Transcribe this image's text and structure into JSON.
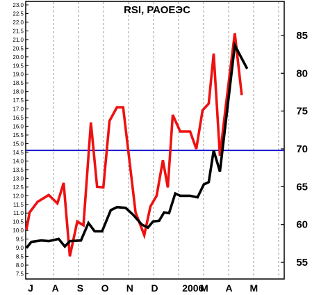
{
  "chart_data": {
    "type": "line",
    "title": "RSI, РАОЕЭС",
    "x_tick_labels": [
      "J",
      "A",
      "S",
      "O",
      "N",
      "D",
      "2006",
      "M",
      "A",
      "M"
    ],
    "left_axis": {
      "ylim": [
        7.2,
        23.2
      ],
      "ticks": [
        "7.5",
        "8.0",
        "8.5",
        "9.0",
        "9.5",
        "10.0",
        "10.5",
        "11.0",
        "11.5",
        "12.0",
        "12.5",
        "13.0",
        "13.5",
        "14.0",
        "14.5",
        "15.0",
        "15.5",
        "16.0",
        "16.5",
        "17.0",
        "17.5",
        "18.0",
        "18.5",
        "19.0",
        "19.5",
        "20.0",
        "20.5",
        "21.0",
        "21.5",
        "22.0",
        "22.5",
        "23.0"
      ]
    },
    "right_axis": {
      "ylim": [
        52.8,
        89.5
      ],
      "ticks": [
        "55",
        "60",
        "65",
        "70",
        "75",
        "80",
        "85"
      ]
    },
    "reference_line": {
      "axis": "right",
      "value": 69.8,
      "color": "#1010cc"
    },
    "grid": "vertical dashed",
    "series": [
      {
        "color": "#ee1111",
        "axis": "right",
        "points": [
          [
            0.0,
            59.3
          ],
          [
            0.13,
            61.6
          ],
          [
            0.45,
            63.0
          ],
          [
            0.9,
            63.9
          ],
          [
            1.25,
            62.8
          ],
          [
            1.5,
            65.5
          ],
          [
            1.75,
            55.8
          ],
          [
            2.05,
            60.4
          ],
          [
            2.3,
            59.9
          ],
          [
            2.6,
            73.5
          ],
          [
            2.85,
            65.0
          ],
          [
            3.1,
            64.9
          ],
          [
            3.35,
            73.7
          ],
          [
            3.65,
            75.5
          ],
          [
            3.9,
            75.5
          ],
          [
            4.4,
            61.6
          ],
          [
            4.75,
            58.6
          ],
          [
            5.0,
            62.4
          ],
          [
            5.25,
            63.8
          ],
          [
            5.5,
            68.5
          ],
          [
            5.7,
            64.9
          ],
          [
            5.9,
            74.5
          ],
          [
            6.2,
            72.3
          ],
          [
            6.6,
            72.3
          ],
          [
            6.85,
            70.0
          ],
          [
            7.1,
            75.1
          ],
          [
            7.35,
            76.0
          ],
          [
            7.55,
            82.6
          ],
          [
            7.8,
            69.1
          ],
          [
            8.05,
            76.0
          ],
          [
            8.4,
            85.3
          ],
          [
            8.68,
            77.1
          ]
        ]
      },
      {
        "color": "#000000",
        "axis": "right",
        "points": [
          [
            0.0,
            56.9
          ],
          [
            0.2,
            57.7
          ],
          [
            0.6,
            57.9
          ],
          [
            0.9,
            57.8
          ],
          [
            1.3,
            58.1
          ],
          [
            1.55,
            57.1
          ],
          [
            1.75,
            57.8
          ],
          [
            2.2,
            57.9
          ],
          [
            2.5,
            60.2
          ],
          [
            2.75,
            59.1
          ],
          [
            3.05,
            59.1
          ],
          [
            3.4,
            61.9
          ],
          [
            3.65,
            62.3
          ],
          [
            4.0,
            62.2
          ],
          [
            4.3,
            61.3
          ],
          [
            4.65,
            60.0
          ],
          [
            4.9,
            59.6
          ],
          [
            5.1,
            60.4
          ],
          [
            5.35,
            60.5
          ],
          [
            5.55,
            61.6
          ],
          [
            5.75,
            61.5
          ],
          [
            6.0,
            64.1
          ],
          [
            6.2,
            63.8
          ],
          [
            6.6,
            63.8
          ],
          [
            6.9,
            63.6
          ],
          [
            7.15,
            65.3
          ],
          [
            7.35,
            65.6
          ],
          [
            7.55,
            69.8
          ],
          [
            7.8,
            67.0
          ],
          [
            8.4,
            83.7
          ],
          [
            8.9,
            80.6
          ]
        ]
      }
    ]
  }
}
